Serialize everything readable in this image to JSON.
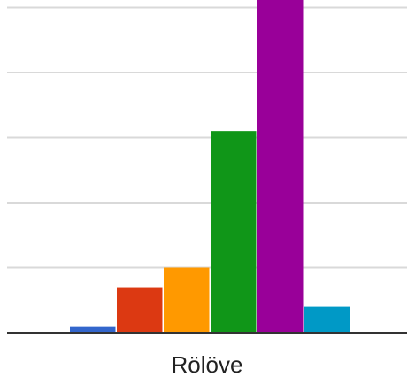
{
  "chart_data": {
    "type": "bar",
    "categories": [
      "Rölöve"
    ],
    "series": [
      {
        "values": [
          1
        ],
        "color": "#3366cc"
      },
      {
        "values": [
          7
        ],
        "color": "#dc3912"
      },
      {
        "values": [
          10
        ],
        "color": "#ff9900"
      },
      {
        "values": [
          31
        ],
        "color": "#109618"
      },
      {
        "values": [
          52
        ],
        "color": "#990099"
      },
      {
        "values": [
          4
        ],
        "color": "#0099c6"
      }
    ],
    "ylim": [
      0,
      50
    ],
    "gridlines": [
      0,
      10,
      20,
      30,
      40,
      50
    ],
    "grid": true,
    "legend": "none"
  }
}
